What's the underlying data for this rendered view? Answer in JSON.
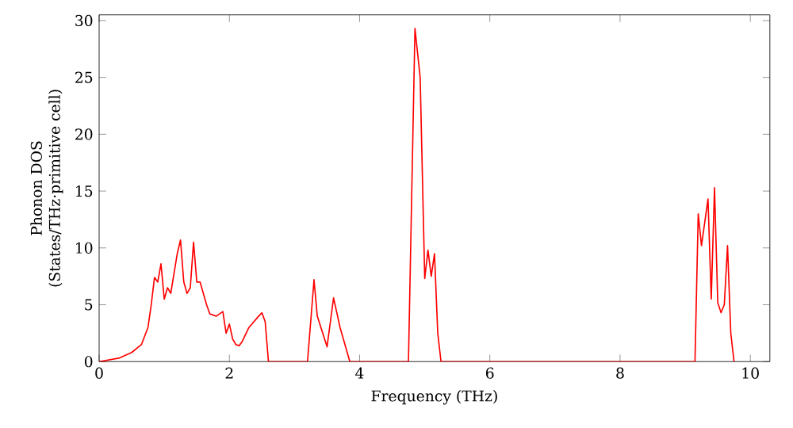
{
  "chart_data": {
    "type": "line",
    "xlabel": "Frequency (THz)",
    "ylabel": "Phonon DOS\n(States/THz·primitive cell)",
    "xlim": [
      0,
      10.3
    ],
    "ylim": [
      0,
      30.5
    ],
    "xticks": [
      0,
      2,
      4,
      6,
      8,
      10
    ],
    "yticks": [
      0,
      5,
      10,
      15,
      20,
      25,
      30
    ],
    "grid": false,
    "series": [
      {
        "color": "#ff0000",
        "x": [
          0,
          0.3,
          0.5,
          0.65,
          0.75,
          0.8,
          0.85,
          0.9,
          0.95,
          1.0,
          1.05,
          1.1,
          1.2,
          1.25,
          1.3,
          1.35,
          1.4,
          1.45,
          1.5,
          1.55,
          1.65,
          1.7,
          1.8,
          1.9,
          1.95,
          2.0,
          2.05,
          2.1,
          2.15,
          2.2,
          2.3,
          2.45,
          2.5,
          2.55,
          2.6,
          3.2,
          3.3,
          3.35,
          3.5,
          3.6,
          3.7,
          3.85,
          4.75,
          4.85,
          4.93,
          5.0,
          5.05,
          5.1,
          5.15,
          5.2,
          5.25,
          9.15,
          9.2,
          9.25,
          9.35,
          9.4,
          9.45,
          9.5,
          9.55,
          9.6,
          9.65,
          9.7,
          9.75
        ],
        "values": [
          0,
          0.3,
          0.8,
          1.5,
          3,
          5,
          7.4,
          7,
          8.6,
          5.5,
          6.5,
          6,
          9.5,
          10.7,
          7,
          6,
          6.5,
          10.5,
          7,
          7,
          5,
          4.2,
          4,
          4.4,
          2.5,
          3.3,
          2,
          1.5,
          1.4,
          1.8,
          3,
          4,
          4.3,
          3.5,
          0,
          0,
          7.2,
          4,
          1.3,
          5.6,
          3,
          0,
          0,
          29.3,
          25,
          7.3,
          9.8,
          7.5,
          9.5,
          2.5,
          0,
          0,
          13,
          10.2,
          14.3,
          5.5,
          15.3,
          5.2,
          4.3,
          5,
          10.2,
          2.5,
          0
        ]
      }
    ]
  }
}
